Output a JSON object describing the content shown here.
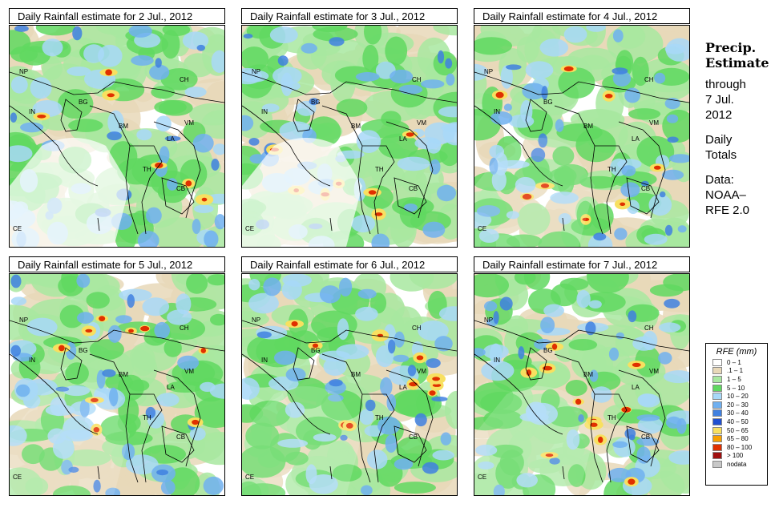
{
  "panels": [
    {
      "title": "Daily Rainfall estimate for  2 Jul., 2012"
    },
    {
      "title": "Daily Rainfall estimate for  3 Jul., 2012"
    },
    {
      "title": "Daily Rainfall estimate for  4 Jul., 2012"
    },
    {
      "title": "Daily Rainfall estimate for  5 Jul., 2012"
    },
    {
      "title": "Daily Rainfall estimate for  6 Jul., 2012"
    },
    {
      "title": "Daily Rainfall estimate for  7 Jul., 2012"
    }
  ],
  "map_labels": [
    "NP",
    "IN",
    "BG",
    "BM",
    "CH",
    "VM",
    "LA",
    "TH",
    "CB",
    "CE"
  ],
  "side": {
    "precip": "Precip.",
    "estimate": "Estimate",
    "through": "through",
    "date": "7 Jul.",
    "year": "2012",
    "daily": "Daily",
    "totals": "Totals",
    "data": "Data:",
    "source1": "NOAA–",
    "source2": "RFE 2.0"
  },
  "legend": {
    "title": "RFE (mm)",
    "items": [
      {
        "label": "0 – 1",
        "color": "#ffffff"
      },
      {
        "label": ".1 – 1",
        "color": "#e8d8b8"
      },
      {
        "label": "1 – 5",
        "color": "#a8e8a0"
      },
      {
        "label": "5 – 10",
        "color": "#60d860"
      },
      {
        "label": "10 – 20",
        "color": "#a8d8f8"
      },
      {
        "label": "20 – 30",
        "color": "#70b0f0"
      },
      {
        "label": "30 – 40",
        "color": "#4080e0"
      },
      {
        "label": "40 – 50",
        "color": "#2050d0"
      },
      {
        "label": "50 – 65",
        "color": "#f8e060"
      },
      {
        "label": "65 – 80",
        "color": "#f8a000"
      },
      {
        "label": "80 – 100",
        "color": "#e03000"
      },
      {
        "label": "> 100",
        "color": "#a01010"
      },
      {
        "label": "nodata",
        "color": "#c8c8c8"
      }
    ]
  }
}
